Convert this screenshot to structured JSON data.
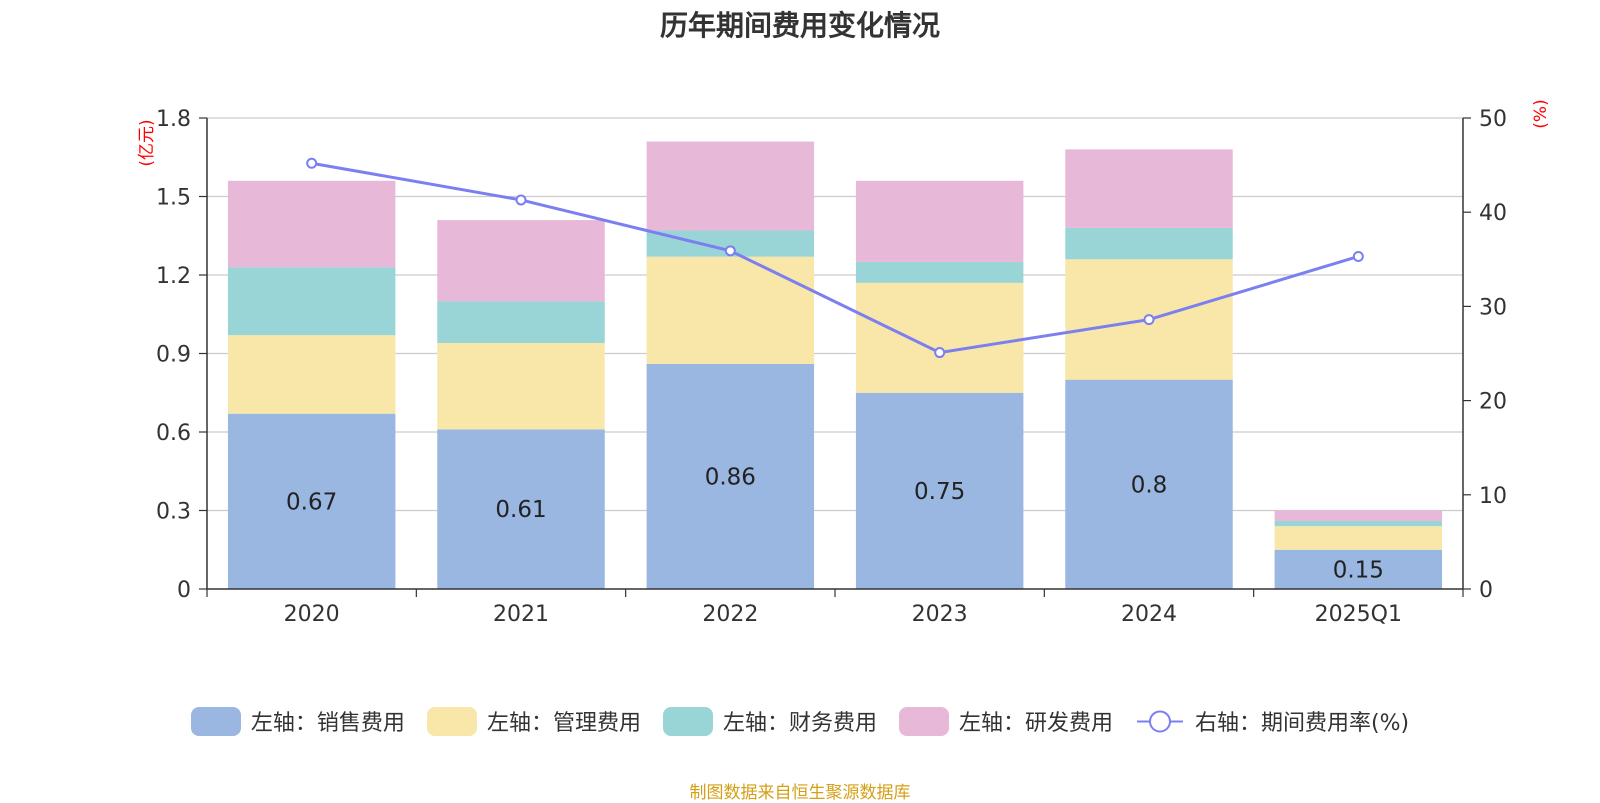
{
  "title": "历年期间费用变化情况",
  "source": "制图数据来自恒生聚源数据库",
  "chart_data": {
    "type": "bar",
    "stacked": true,
    "title": "历年期间费用变化情况",
    "categories": [
      "2020",
      "2021",
      "2022",
      "2023",
      "2024",
      "2025Q1"
    ],
    "left_axis": {
      "unit": "(亿元)",
      "ylim": [
        0,
        1.8
      ],
      "ticks": [
        "0",
        "0.3",
        "0.6",
        "0.9",
        "1.2",
        "1.5",
        "1.8"
      ]
    },
    "right_axis": {
      "unit": "(%)",
      "ylim": [
        0,
        50
      ],
      "ticks": [
        "0",
        "10",
        "20",
        "30",
        "40",
        "50"
      ]
    },
    "series": [
      {
        "name": "左轴：销售费用",
        "axis": "left",
        "color": "#9ab7e1",
        "values": [
          0.67,
          0.61,
          0.86,
          0.75,
          0.8,
          0.15
        ],
        "labels": [
          "0.67",
          "0.61",
          "0.86",
          "0.75",
          "0.8",
          "0.15"
        ]
      },
      {
        "name": "左轴：管理费用",
        "axis": "left",
        "color": "#f8e7a8",
        "values": [
          0.3,
          0.33,
          0.41,
          0.42,
          0.46,
          0.09
        ]
      },
      {
        "name": "左轴：财务费用",
        "axis": "left",
        "color": "#99d5d6",
        "values": [
          0.26,
          0.16,
          0.1,
          0.08,
          0.12,
          0.02
        ]
      },
      {
        "name": "左轴：研发费用",
        "axis": "left",
        "color": "#e8b8d9",
        "values": [
          0.33,
          0.31,
          0.34,
          0.31,
          0.3,
          0.04
        ]
      },
      {
        "name": "右轴：期间费用率(%)",
        "axis": "right",
        "type": "line",
        "color": "#7b7ff0",
        "values": [
          45.2,
          41.3,
          35.9,
          25.1,
          28.6,
          35.3
        ]
      }
    ],
    "legend_position": "bottom",
    "grid": true
  }
}
